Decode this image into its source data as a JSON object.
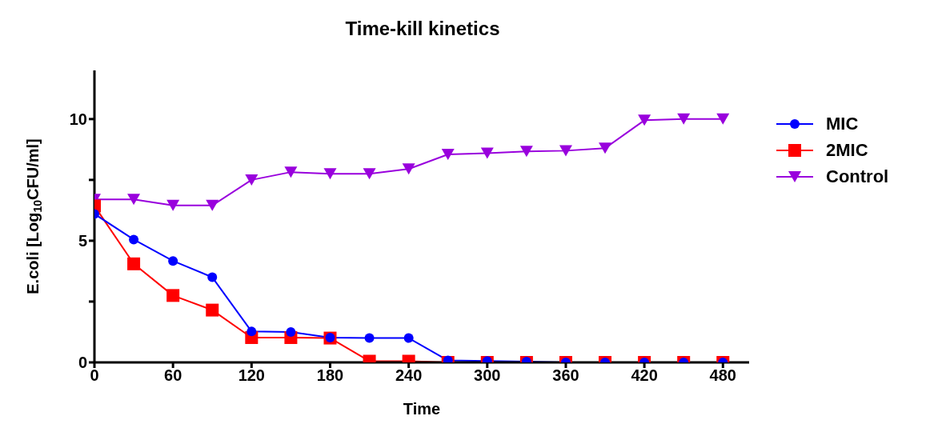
{
  "chart_data": {
    "type": "line",
    "title": "Time-kill kinetics",
    "xlabel": "Time",
    "ylabel": "E.coli [Log$_{10}$CFU/ml]",
    "x": [
      0,
      30,
      60,
      90,
      120,
      150,
      180,
      210,
      240,
      270,
      300,
      330,
      360,
      390,
      420,
      450,
      480
    ],
    "xlim": [
      0,
      500
    ],
    "xticks": [
      0,
      60,
      120,
      180,
      240,
      300,
      360,
      420,
      480
    ],
    "ylim": [
      0,
      12
    ],
    "yticks": [
      0,
      {
        "value": 2.5,
        "label": null
      },
      5,
      {
        "value": 7.5,
        "label": null
      },
      10
    ],
    "grid": false,
    "legend": "right",
    "line_style": "solid",
    "series": [
      {
        "name": "MIC",
        "color": "#0000ff",
        "marker": "circle",
        "values": [
          6.1,
          5.05,
          4.17,
          3.5,
          1.27,
          1.25,
          1.02,
          1.0,
          1.0,
          0.08,
          0.06,
          0.03,
          0,
          0,
          0,
          0,
          0
        ]
      },
      {
        "name": "2MIC",
        "color": "#ff0000",
        "marker": "square",
        "values": [
          6.43,
          4.05,
          2.75,
          2.15,
          1.02,
          1.02,
          1.0,
          0.05,
          0.05,
          0,
          0,
          0,
          0,
          0,
          0,
          0,
          0
        ]
      },
      {
        "name": "Control",
        "color": "#9900dd",
        "marker": "triangle",
        "values": [
          6.7,
          6.7,
          6.45,
          6.45,
          7.5,
          7.82,
          7.75,
          7.75,
          7.95,
          8.55,
          8.6,
          8.67,
          8.7,
          8.8,
          9.95,
          10.0,
          10.0
        ]
      }
    ]
  }
}
